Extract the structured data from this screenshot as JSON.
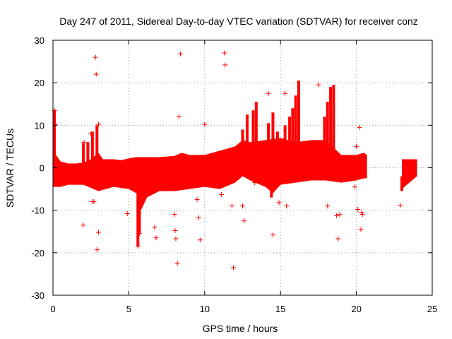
{
  "chart_data": {
    "type": "scatter",
    "title": "Day 247 of 2011, Sidereal Day-to-day VTEC variation (SDTVAR) for receiver conz",
    "xlabel": "GPS time / hours",
    "ylabel": "SDTVAR / TECUs",
    "xlim": [
      0,
      25
    ],
    "ylim": [
      -30,
      30
    ],
    "xticks": [
      0,
      5,
      10,
      15,
      20,
      25
    ],
    "yticks": [
      -30,
      -20,
      -10,
      0,
      10,
      20,
      30
    ],
    "grid": true,
    "marker": "+",
    "color": "#ff0000",
    "series": [
      {
        "name": "SDTVAR",
        "band_upper": [
          [
            0.0,
            2.0
          ],
          [
            0.2,
            3.0
          ],
          [
            0.5,
            1.5
          ],
          [
            1.0,
            1.0
          ],
          [
            1.5,
            1.0
          ],
          [
            2.0,
            1.2
          ],
          [
            2.5,
            2.0
          ],
          [
            3.0,
            3.5
          ],
          [
            3.3,
            2.0
          ],
          [
            4.0,
            2.0
          ],
          [
            4.5,
            1.8
          ],
          [
            5.0,
            2.2
          ],
          [
            5.5,
            2.5
          ],
          [
            6.0,
            2.5
          ],
          [
            7.0,
            2.5
          ],
          [
            8.0,
            2.8
          ],
          [
            8.5,
            3.5
          ],
          [
            9.0,
            3.0
          ],
          [
            10.0,
            3.0
          ],
          [
            11.0,
            4.0
          ],
          [
            12.0,
            5.0
          ],
          [
            12.5,
            6.5
          ],
          [
            13.0,
            6.0
          ],
          [
            14.0,
            6.5
          ],
          [
            15.0,
            7.0
          ],
          [
            16.0,
            6.0
          ],
          [
            17.0,
            6.5
          ],
          [
            18.0,
            6.5
          ],
          [
            19.0,
            3.0
          ],
          [
            20.0,
            3.0
          ],
          [
            20.5,
            3.5
          ],
          [
            20.7,
            3.0
          ]
        ],
        "band_lower": [
          [
            0.0,
            -4.5
          ],
          [
            0.5,
            -4.5
          ],
          [
            1.0,
            -4.0
          ],
          [
            2.0,
            -4.0
          ],
          [
            3.0,
            -5.5
          ],
          [
            4.0,
            -4.5
          ],
          [
            5.0,
            -5.0
          ],
          [
            5.5,
            -6.0
          ],
          [
            5.8,
            -10.0
          ],
          [
            6.2,
            -7.0
          ],
          [
            7.0,
            -5.5
          ],
          [
            8.0,
            -5.5
          ],
          [
            9.0,
            -5.0
          ],
          [
            10.0,
            -4.5
          ],
          [
            11.0,
            -5.0
          ],
          [
            12.0,
            -3.5
          ],
          [
            12.5,
            -2.0
          ],
          [
            13.0,
            -3.0
          ],
          [
            14.0,
            -4.5
          ],
          [
            14.5,
            -6.0
          ],
          [
            15.0,
            -4.0
          ],
          [
            16.0,
            -3.5
          ],
          [
            17.0,
            -3.0
          ],
          [
            18.0,
            -3.0
          ],
          [
            19.0,
            -3.5
          ],
          [
            20.0,
            -3.0
          ],
          [
            20.5,
            -2.5
          ],
          [
            20.7,
            -2.5
          ]
        ],
        "band_upper_late": [
          [
            23.0,
            2.0
          ],
          [
            24.0,
            2.0
          ]
        ],
        "band_lower_late": [
          [
            23.0,
            -5.0
          ],
          [
            24.0,
            -2.0
          ]
        ],
        "spikes": [
          [
            0.1,
            -2,
            13.5
          ],
          [
            2.0,
            -3,
            5.8
          ],
          [
            2.3,
            -3,
            6.0
          ],
          [
            2.6,
            -3,
            8.5
          ],
          [
            2.9,
            -2,
            10.0
          ],
          [
            5.6,
            -4,
            -18.5
          ],
          [
            5.7,
            -3,
            -15.5
          ],
          [
            12.5,
            2,
            9.0
          ],
          [
            12.8,
            2,
            12.5
          ],
          [
            13.2,
            3,
            13.5
          ],
          [
            13.4,
            2,
            15.5
          ],
          [
            14.2,
            2,
            10.5
          ],
          [
            14.4,
            -2,
            -7.0
          ],
          [
            14.5,
            2,
            13.0
          ],
          [
            14.8,
            2,
            8.5
          ],
          [
            15.3,
            2,
            10.0
          ],
          [
            15.6,
            2,
            12.0
          ],
          [
            15.8,
            2,
            14.0
          ],
          [
            16.0,
            2,
            17.0
          ],
          [
            16.2,
            2,
            20.5
          ],
          [
            17.9,
            2,
            12.0
          ],
          [
            18.1,
            2,
            15.5
          ],
          [
            18.3,
            2,
            19.0
          ],
          [
            18.5,
            2,
            19.5
          ],
          [
            23.0,
            -2,
            -5.5
          ]
        ],
        "outliers": [
          [
            0.1,
            13.5
          ],
          [
            0.15,
            10.2
          ],
          [
            2.0,
            -13.5
          ],
          [
            2.05,
            6.0
          ],
          [
            2.5,
            8.0
          ],
          [
            2.6,
            -8.0
          ],
          [
            2.7,
            -8.0
          ],
          [
            2.8,
            26.0
          ],
          [
            2.85,
            22.0
          ],
          [
            2.9,
            -19.3
          ],
          [
            3.0,
            -15.2
          ],
          [
            3.0,
            10.2
          ],
          [
            4.9,
            -10.8
          ],
          [
            5.6,
            -18.5
          ],
          [
            5.7,
            -15.5
          ],
          [
            6.7,
            -14.0
          ],
          [
            6.8,
            -16.5
          ],
          [
            8.0,
            -11.0
          ],
          [
            8.05,
            -14.8
          ],
          [
            8.1,
            -16.7
          ],
          [
            8.2,
            -22.5
          ],
          [
            8.3,
            12.0
          ],
          [
            8.4,
            26.8
          ],
          [
            9.5,
            -7.5
          ],
          [
            9.6,
            -11.8
          ],
          [
            9.7,
            -17.0
          ],
          [
            10.0,
            10.2
          ],
          [
            11.0,
            -4.0
          ],
          [
            11.1,
            -6.3
          ],
          [
            11.3,
            27.0
          ],
          [
            11.35,
            24.2
          ],
          [
            11.8,
            -9.0
          ],
          [
            11.9,
            -23.5
          ],
          [
            12.5,
            -9.0
          ],
          [
            12.6,
            -12.5
          ],
          [
            13.3,
            -3.5
          ],
          [
            14.2,
            17.5
          ],
          [
            14.5,
            -15.8
          ],
          [
            14.9,
            -8.2
          ],
          [
            15.3,
            17.5
          ],
          [
            15.4,
            -9.0
          ],
          [
            17.5,
            19.5
          ],
          [
            18.1,
            -9.0
          ],
          [
            18.7,
            -11.3
          ],
          [
            18.8,
            -16.7
          ],
          [
            18.9,
            -11.0
          ],
          [
            19.9,
            -4.5
          ],
          [
            20.0,
            5.0
          ],
          [
            20.1,
            -9.8
          ],
          [
            20.2,
            9.5
          ],
          [
            20.3,
            -14.5
          ],
          [
            20.35,
            -10.5
          ],
          [
            20.4,
            -11.0
          ],
          [
            22.9,
            -8.8
          ]
        ]
      }
    ]
  }
}
